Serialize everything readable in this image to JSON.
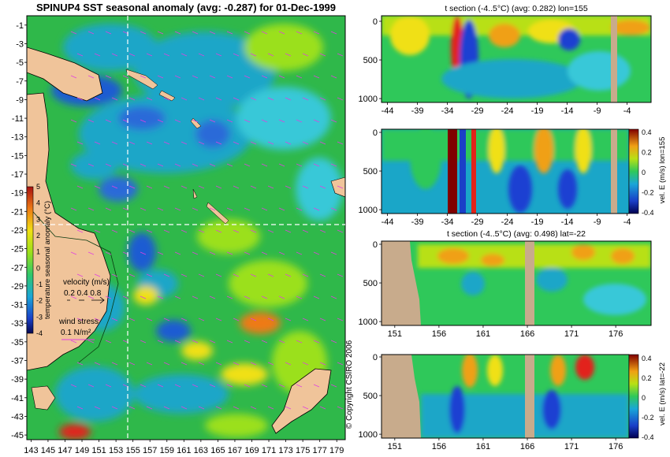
{
  "chart_data": [
    {
      "type": "heatmap",
      "title": "SPINUP4 SST seasonal anomaly (avg: -0.287) for 01-Dec-1999",
      "x_ticks": [
        "143",
        "145",
        "147",
        "149",
        "151",
        "153",
        "155",
        "157",
        "159",
        "161",
        "163",
        "165",
        "167",
        "169",
        "171",
        "173",
        "175",
        "177",
        "179"
      ],
      "y_ticks": [
        "-1",
        "-3",
        "-5",
        "-7",
        "-9",
        "-11",
        "-13",
        "-15",
        "-17",
        "-19",
        "-21",
        "-23",
        "-25",
        "-27",
        "-29",
        "-31",
        "-33",
        "-35",
        "-37",
        "-39",
        "-41",
        "-43",
        "-45"
      ],
      "x_range": [
        142.5,
        180
      ],
      "y_range": [
        -45.5,
        0
      ],
      "colorbar": {
        "label": "temperature seasonal anomaly (°C)",
        "range": [
          -4,
          5
        ],
        "ticks": [
          "5",
          "4",
          "3",
          "2",
          "1",
          "0",
          "-1",
          "-2",
          "-3",
          "-4"
        ]
      },
      "velocity_legend": {
        "title": "velocity (m/s)",
        "values": "0.2 0.4 0.8"
      },
      "wind_legend": {
        "title": "wind stress",
        "value": "0.1 N/m²"
      },
      "section_lines": {
        "lon": 155,
        "lat": -22
      }
    },
    {
      "type": "heatmap",
      "title": "t section (-4..5°C) (avg: 0.282) lon=155",
      "x_ticks": [
        "-44",
        "-39",
        "-34",
        "-29",
        "-24",
        "-19",
        "-14",
        "-9",
        "-4"
      ],
      "x_range": [
        -45,
        0
      ],
      "y_ticks": [
        "0",
        "500",
        "1000"
      ],
      "y_range": [
        0,
        1050
      ]
    },
    {
      "type": "heatmap",
      "title": "",
      "x_ticks": [
        "-44",
        "-39",
        "-34",
        "-29",
        "-24",
        "-19",
        "-14",
        "-9",
        "-4"
      ],
      "x_range": [
        -45,
        0
      ],
      "y_ticks": [
        "0",
        "500",
        "1000"
      ],
      "y_range": [
        0,
        1050
      ],
      "colorbar": {
        "label": "vel. E (m/s) lon=155",
        "range": [
          -0.4,
          0.4
        ],
        "ticks": [
          "0.4",
          "0.2",
          "0",
          "-0.2",
          "-0.4"
        ]
      }
    },
    {
      "type": "heatmap",
      "title": "t section (-4..5°C) (avg: 0.498) lat=-22",
      "x_ticks": [
        "151",
        "156",
        "161",
        "166",
        "171",
        "176"
      ],
      "x_range": [
        149.5,
        180
      ],
      "y_ticks": [
        "0",
        "500",
        "1000"
      ],
      "y_range": [
        0,
        1050
      ]
    },
    {
      "type": "heatmap",
      "title": "",
      "x_ticks": [
        "151",
        "156",
        "161",
        "166",
        "171",
        "176"
      ],
      "x_range": [
        149.5,
        180
      ],
      "y_ticks": [
        "0",
        "500",
        "1000"
      ],
      "y_range": [
        0,
        1050
      ],
      "colorbar": {
        "label": "vel. E (m/s) lat=-22",
        "range": [
          -0.4,
          0.4
        ],
        "ticks": [
          "0.4",
          "0.2",
          "0",
          "-0.2",
          "-0.4"
        ]
      }
    }
  ],
  "copyright": "© Copyright CSIRO 2006",
  "colors": {
    "land": "#f0c49a",
    "section_land": "#c8ab8c",
    "ocean_base": "#2fb84a",
    "ocean_cool": "#1aa6c8",
    "ocean_cold": "#1e5bd2",
    "warm": "#f0e014",
    "hot": "#e2231a",
    "wind_arrow": "#e040e0"
  }
}
